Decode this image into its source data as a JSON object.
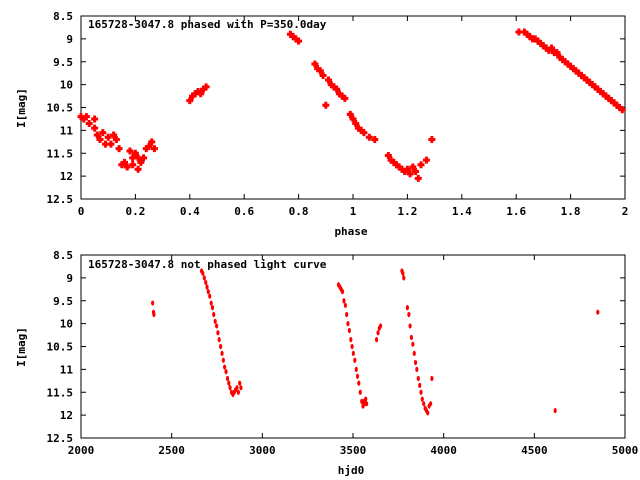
{
  "chart_data": [
    {
      "type": "scatter",
      "title": "165728-3047.8 phased with P=350.0day",
      "xlabel": "phase",
      "ylabel": "I[mag]",
      "xlim": [
        0,
        2
      ],
      "ylim": [
        12.5,
        8.5
      ],
      "y_inverted": true,
      "grid": false,
      "xticks": [
        "0",
        "0.2",
        "0.4",
        "0.6",
        "0.8",
        "1",
        "1.2",
        "1.4",
        "1.6",
        "1.8",
        "2"
      ],
      "yticks": [
        "8.5",
        "9",
        "9.5",
        "10",
        "10.5",
        "11",
        "11.5",
        "12",
        "12.5"
      ],
      "marker": "plus",
      "color": "#ff0000",
      "series": [
        {
          "x": [
            0.0,
            0.01,
            0.02,
            0.03,
            0.05,
            0.05,
            0.06,
            0.07,
            0.08,
            0.09,
            0.1,
            0.11,
            0.12,
            0.13,
            0.14,
            0.15,
            0.16,
            0.17,
            0.18,
            0.19,
            0.19,
            0.2,
            0.21,
            0.21,
            0.22,
            0.23,
            0.24,
            0.25,
            0.26,
            0.27,
            0.4,
            0.41,
            0.42,
            0.43,
            0.44,
            0.45,
            0.46,
            0.77,
            0.78,
            0.79,
            0.8,
            0.86,
            0.87,
            0.88,
            0.89,
            0.9,
            0.91,
            0.92,
            0.93,
            0.94,
            0.95,
            0.96,
            0.97,
            0.99,
            1.0,
            1.01,
            1.02,
            1.03,
            1.04,
            1.06,
            1.08,
            1.13,
            1.14,
            1.15,
            1.16,
            1.17,
            1.18,
            1.19,
            1.2,
            1.21,
            1.22,
            1.23,
            1.24,
            1.25,
            1.27,
            1.29,
            1.61,
            1.63,
            1.64,
            1.65,
            1.66,
            1.67,
            1.68,
            1.69,
            1.7,
            1.71,
            1.72,
            1.73,
            1.74,
            1.75,
            1.76,
            1.77,
            1.78,
            1.79,
            1.8,
            1.81,
            1.82,
            1.83,
            1.84,
            1.85,
            1.86,
            1.87,
            1.88,
            1.89,
            1.9,
            1.91,
            1.92,
            1.93,
            1.94,
            1.95,
            1.96,
            1.97,
            1.98,
            1.99
          ],
          "y": [
            10.7,
            10.75,
            10.7,
            10.85,
            10.75,
            10.95,
            11.1,
            11.2,
            11.05,
            11.3,
            11.15,
            11.3,
            11.1,
            11.2,
            11.4,
            11.75,
            11.7,
            11.8,
            11.45,
            11.6,
            11.75,
            11.5,
            11.6,
            11.85,
            11.7,
            11.6,
            11.4,
            11.35,
            11.25,
            11.4,
            10.35,
            10.25,
            10.2,
            10.15,
            10.2,
            10.1,
            10.05,
            8.9,
            8.95,
            9.0,
            9.05,
            9.55,
            9.65,
            9.7,
            9.8,
            10.45,
            9.9,
            10.0,
            10.05,
            10.1,
            10.2,
            10.25,
            10.3,
            10.65,
            10.75,
            10.85,
            10.95,
            11.0,
            11.05,
            11.15,
            11.2,
            11.55,
            11.65,
            11.7,
            11.75,
            11.8,
            11.85,
            11.9,
            11.85,
            11.95,
            11.8,
            11.9,
            12.05,
            11.75,
            11.65,
            11.2,
            8.85,
            8.85,
            8.9,
            8.95,
            9.0,
            9.0,
            9.05,
            9.1,
            9.15,
            9.2,
            9.25,
            9.2,
            9.3,
            9.3,
            9.4,
            9.45,
            9.5,
            9.55,
            9.6,
            9.65,
            9.7,
            9.75,
            9.8,
            9.85,
            9.9,
            9.95,
            10.0,
            10.05,
            10.1,
            10.15,
            10.2,
            10.25,
            10.3,
            10.35,
            10.4,
            10.45,
            10.5,
            10.55
          ]
        }
      ]
    },
    {
      "type": "scatter",
      "title": "165728-3047.8 not phased light curve",
      "xlabel": "hjd0",
      "ylabel": "I[mag]",
      "xlim": [
        2000,
        5000
      ],
      "ylim": [
        12.5,
        8.5
      ],
      "y_inverted": true,
      "grid": false,
      "xticks": [
        "2000",
        "2500",
        "3000",
        "3500",
        "4000",
        "4500",
        "5000"
      ],
      "yticks": [
        "8.5",
        "9",
        "9.5",
        "10",
        "10.5",
        "11",
        "11.5",
        "12",
        "12.5"
      ],
      "marker": "dot",
      "color": "#ff0000",
      "series": [
        {
          "x": [
            2395,
            2400,
            2402,
            2665,
            2672,
            2680,
            2688,
            2695,
            2702,
            2710,
            2718,
            2725,
            2732,
            2740,
            2748,
            2755,
            2762,
            2770,
            2778,
            2785,
            2792,
            2800,
            2808,
            2815,
            2822,
            2830,
            2838,
            2845,
            2852,
            2860,
            2868,
            2875,
            2882,
            3420,
            3428,
            3435,
            3442,
            3450,
            3458,
            3465,
            3472,
            3480,
            3488,
            3495,
            3502,
            3510,
            3518,
            3525,
            3532,
            3540,
            3548,
            3555,
            3560,
            3565,
            3570,
            3575,
            3630,
            3638,
            3645,
            3652,
            3770,
            3775,
            3780,
            3800,
            3808,
            3815,
            3822,
            3830,
            3838,
            3845,
            3852,
            3860,
            3868,
            3875,
            3882,
            3890,
            3898,
            3905,
            3912,
            3920,
            3928,
            3935,
            4615,
            4850
          ],
          "y": [
            9.55,
            9.75,
            9.8,
            8.85,
            8.9,
            9.0,
            9.1,
            9.2,
            9.3,
            9.4,
            9.55,
            9.65,
            9.8,
            9.95,
            10.05,
            10.2,
            10.35,
            10.5,
            10.65,
            10.8,
            10.95,
            11.05,
            11.2,
            11.3,
            11.4,
            11.5,
            11.55,
            11.5,
            11.45,
            11.4,
            11.5,
            11.3,
            11.4,
            9.15,
            9.2,
            9.25,
            9.3,
            9.5,
            9.6,
            9.8,
            10.0,
            10.15,
            10.35,
            10.5,
            10.65,
            10.8,
            11.0,
            11.15,
            11.3,
            11.5,
            11.7,
            11.8,
            11.7,
            11.75,
            11.65,
            11.75,
            10.35,
            10.2,
            10.1,
            10.05,
            8.85,
            8.9,
            9.0,
            9.65,
            9.8,
            10.05,
            10.3,
            10.45,
            10.65,
            10.85,
            11.0,
            11.2,
            11.35,
            11.5,
            11.65,
            11.75,
            11.85,
            11.9,
            11.95,
            11.8,
            11.75,
            11.2,
            11.9,
            9.75
          ]
        }
      ]
    }
  ]
}
